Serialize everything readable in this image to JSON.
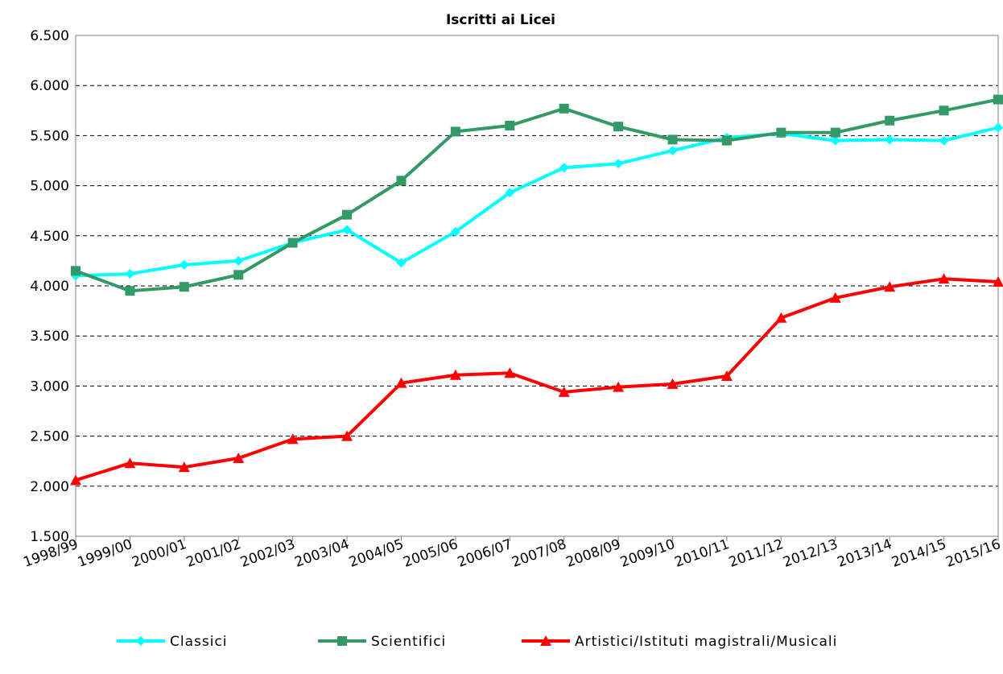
{
  "chart_data": {
    "type": "line",
    "title": "Iscritti ai Licei",
    "categories": [
      "1998/99",
      "1999/00",
      "2000/01",
      "2001/02",
      "2002/03",
      "2003/04",
      "2004/05",
      "2005/06",
      "2006/07",
      "2007/08",
      "2008/09",
      "2009/10",
      "2010/11",
      "2011/12",
      "2012/13",
      "2013/14",
      "2014/15",
      "2015/16"
    ],
    "series": [
      {
        "name": "Classici",
        "color": "#00ffff",
        "marker": "diamond",
        "values": [
          4100,
          4120,
          4210,
          4250,
          4430,
          4560,
          4230,
          4540,
          4930,
          5180,
          5220,
          5350,
          5480,
          5520,
          5450,
          5460,
          5450,
          5580
        ]
      },
      {
        "name": "Scientifici",
        "color": "#339966",
        "marker": "square",
        "values": [
          4150,
          3950,
          3990,
          4110,
          4430,
          4710,
          5050,
          5540,
          5600,
          5770,
          5590,
          5460,
          5450,
          5530,
          5530,
          5650,
          5750,
          5860
        ]
      },
      {
        "name": "Artistici/Istituti magistrali/Musicali",
        "color": "#ff0000",
        "marker": "triangle",
        "values": [
          2060,
          2230,
          2190,
          2280,
          2470,
          2500,
          3030,
          3110,
          3130,
          2940,
          2990,
          3020,
          3100,
          3680,
          3880,
          3990,
          4070,
          4040
        ]
      }
    ],
    "ylim": [
      1500,
      6500
    ],
    "yticks": [
      {
        "value": 1500,
        "label": "1.500"
      },
      {
        "value": 2000,
        "label": "2.000"
      },
      {
        "value": 2500,
        "label": "2.500"
      },
      {
        "value": 3000,
        "label": "3.000"
      },
      {
        "value": 3500,
        "label": "3.500"
      },
      {
        "value": 4000,
        "label": "4.000"
      },
      {
        "value": 4500,
        "label": "4.500"
      },
      {
        "value": 5000,
        "label": "5.000"
      },
      {
        "value": 5500,
        "label": "5.500"
      },
      {
        "value": 6000,
        "label": "6.000"
      },
      {
        "value": 6500,
        "label": "6.500"
      }
    ],
    "grid": true,
    "legend": "bottom"
  }
}
